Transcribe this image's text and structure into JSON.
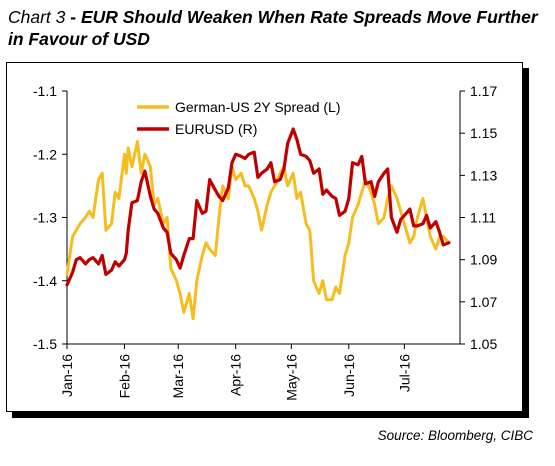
{
  "title": {
    "lead": "Chart 3",
    "separator": " - ",
    "text": "EUR Should Weaken When Rate Spreads Move Further in Favour of USD"
  },
  "source": "Source: Bloomberg, CIBC",
  "colors": {
    "spread": "#F5BD1F",
    "eurusd": "#C00000",
    "axis": "#000000"
  },
  "chart_data": {
    "type": "line",
    "title": "EUR Should Weaken When Rate Spreads Move Further in Favour of USD",
    "x_ticks": [
      "Jan-16",
      "Feb-16",
      "Mar-16",
      "Apr-16",
      "May-16",
      "Jun-16",
      "Jul-16"
    ],
    "x_range": [
      "2016-01-01",
      "2016-07-31"
    ],
    "y_left": {
      "range": [
        -1.5,
        -1.1
      ],
      "ticks": [
        "-1.1",
        "-1.2",
        "-1.3",
        "-1.4",
        "-1.5"
      ],
      "tick_values": [
        -1.1,
        -1.2,
        -1.3,
        -1.4,
        -1.5
      ]
    },
    "y_right": {
      "range": [
        1.05,
        1.17
      ],
      "ticks": [
        "1.17",
        "1.15",
        "1.13",
        "1.11",
        "1.09",
        "1.07",
        "1.05"
      ],
      "tick_values": [
        1.17,
        1.15,
        1.13,
        1.11,
        1.09,
        1.07,
        1.05
      ]
    },
    "legend_position": "top-left",
    "grid": false,
    "series": [
      {
        "name": "German-US 2Y Spread (L)",
        "axis": "left",
        "color": "#F5BD1F",
        "points": [
          [
            "2016-01-01",
            -1.39
          ],
          [
            "2016-01-04",
            -1.33
          ],
          [
            "2016-01-06",
            -1.32
          ],
          [
            "2016-01-08",
            -1.31
          ],
          [
            "2016-01-11",
            -1.3
          ],
          [
            "2016-01-13",
            -1.29
          ],
          [
            "2016-01-15",
            -1.3
          ],
          [
            "2016-01-18",
            -1.24
          ],
          [
            "2016-01-20",
            -1.23
          ],
          [
            "2016-01-22",
            -1.32
          ],
          [
            "2016-01-25",
            -1.31
          ],
          [
            "2016-01-27",
            -1.26
          ],
          [
            "2016-01-29",
            -1.27
          ],
          [
            "2016-02-01",
            -1.2
          ],
          [
            "2016-02-02",
            -1.23
          ],
          [
            "2016-02-03",
            -1.19
          ],
          [
            "2016-02-05",
            -1.22
          ],
          [
            "2016-02-08",
            -1.18
          ],
          [
            "2016-02-10",
            -1.23
          ],
          [
            "2016-02-12",
            -1.2
          ],
          [
            "2016-02-15",
            -1.22
          ],
          [
            "2016-02-17",
            -1.28
          ],
          [
            "2016-02-19",
            -1.27
          ],
          [
            "2016-02-22",
            -1.31
          ],
          [
            "2016-02-24",
            -1.3
          ],
          [
            "2016-02-26",
            -1.38
          ],
          [
            "2016-02-29",
            -1.4
          ],
          [
            "2016-03-02",
            -1.42
          ],
          [
            "2016-03-04",
            -1.45
          ],
          [
            "2016-03-07",
            -1.42
          ],
          [
            "2016-03-09",
            -1.46
          ],
          [
            "2016-03-11",
            -1.4
          ],
          [
            "2016-03-14",
            -1.36
          ],
          [
            "2016-03-16",
            -1.34
          ],
          [
            "2016-03-18",
            -1.35
          ],
          [
            "2016-03-21",
            -1.36
          ],
          [
            "2016-03-23",
            -1.3
          ],
          [
            "2016-03-25",
            -1.25
          ],
          [
            "2016-03-28",
            -1.27
          ],
          [
            "2016-03-30",
            -1.22
          ],
          [
            "2016-04-01",
            -1.24
          ],
          [
            "2016-04-04",
            -1.23
          ],
          [
            "2016-04-06",
            -1.25
          ],
          [
            "2016-04-08",
            -1.25
          ],
          [
            "2016-04-11",
            -1.27
          ],
          [
            "2016-04-13",
            -1.29
          ],
          [
            "2016-04-15",
            -1.32
          ],
          [
            "2016-04-18",
            -1.28
          ],
          [
            "2016-04-20",
            -1.26
          ],
          [
            "2016-04-22",
            -1.25
          ],
          [
            "2016-04-25",
            -1.23
          ],
          [
            "2016-04-27",
            -1.22
          ],
          [
            "2016-04-29",
            -1.25
          ],
          [
            "2016-05-02",
            -1.23
          ],
          [
            "2016-05-04",
            -1.27
          ],
          [
            "2016-05-06",
            -1.26
          ],
          [
            "2016-05-09",
            -1.31
          ],
          [
            "2016-05-11",
            -1.32
          ],
          [
            "2016-05-13",
            -1.4
          ],
          [
            "2016-05-16",
            -1.42
          ],
          [
            "2016-05-18",
            -1.4
          ],
          [
            "2016-05-20",
            -1.43
          ],
          [
            "2016-05-23",
            -1.43
          ],
          [
            "2016-05-25",
            -1.41
          ],
          [
            "2016-05-27",
            -1.42
          ],
          [
            "2016-05-30",
            -1.36
          ],
          [
            "2016-06-01",
            -1.34
          ],
          [
            "2016-06-03",
            -1.3
          ],
          [
            "2016-06-06",
            -1.28
          ],
          [
            "2016-06-08",
            -1.26
          ],
          [
            "2016-06-10",
            -1.24
          ],
          [
            "2016-06-13",
            -1.26
          ],
          [
            "2016-06-15",
            -1.28
          ],
          [
            "2016-06-17",
            -1.31
          ],
          [
            "2016-06-20",
            -1.3
          ],
          [
            "2016-06-22",
            -1.27
          ],
          [
            "2016-06-24",
            -1.25
          ],
          [
            "2016-06-27",
            -1.27
          ],
          [
            "2016-06-29",
            -1.29
          ],
          [
            "2016-07-01",
            -1.31
          ],
          [
            "2016-07-04",
            -1.34
          ],
          [
            "2016-07-06",
            -1.33
          ],
          [
            "2016-07-08",
            -1.3
          ],
          [
            "2016-07-11",
            -1.27
          ],
          [
            "2016-07-13",
            -1.3
          ],
          [
            "2016-07-15",
            -1.33
          ],
          [
            "2016-07-18",
            -1.35
          ],
          [
            "2016-07-20",
            -1.33
          ],
          [
            "2016-07-22",
            -1.33
          ],
          [
            "2016-07-25",
            -1.34
          ]
        ]
      },
      {
        "name": "EURUSD (R)",
        "axis": "right",
        "color": "#C00000",
        "points": [
          [
            "2016-01-01",
            1.078
          ],
          [
            "2016-01-04",
            1.084
          ],
          [
            "2016-01-06",
            1.09
          ],
          [
            "2016-01-08",
            1.091
          ],
          [
            "2016-01-11",
            1.088
          ],
          [
            "2016-01-13",
            1.09
          ],
          [
            "2016-01-15",
            1.091
          ],
          [
            "2016-01-18",
            1.088
          ],
          [
            "2016-01-20",
            1.092
          ],
          [
            "2016-01-22",
            1.083
          ],
          [
            "2016-01-25",
            1.085
          ],
          [
            "2016-01-27",
            1.089
          ],
          [
            "2016-01-29",
            1.087
          ],
          [
            "2016-02-01",
            1.09
          ],
          [
            "2016-02-02",
            1.093
          ],
          [
            "2016-02-03",
            1.104
          ],
          [
            "2016-02-05",
            1.117
          ],
          [
            "2016-02-08",
            1.118
          ],
          [
            "2016-02-10",
            1.127
          ],
          [
            "2016-02-12",
            1.132
          ],
          [
            "2016-02-15",
            1.12
          ],
          [
            "2016-02-17",
            1.114
          ],
          [
            "2016-02-19",
            1.112
          ],
          [
            "2016-02-22",
            1.105
          ],
          [
            "2016-02-24",
            1.103
          ],
          [
            "2016-02-26",
            1.093
          ],
          [
            "2016-02-29",
            1.09
          ],
          [
            "2016-03-02",
            1.086
          ],
          [
            "2016-03-04",
            1.092
          ],
          [
            "2016-03-07",
            1.1
          ],
          [
            "2016-03-09",
            1.1
          ],
          [
            "2016-03-11",
            1.118
          ],
          [
            "2016-03-14",
            1.112
          ],
          [
            "2016-03-16",
            1.113
          ],
          [
            "2016-03-18",
            1.128
          ],
          [
            "2016-03-21",
            1.123
          ],
          [
            "2016-03-23",
            1.12
          ],
          [
            "2016-03-25",
            1.118
          ],
          [
            "2016-03-28",
            1.124
          ],
          [
            "2016-03-30",
            1.136
          ],
          [
            "2016-04-01",
            1.14
          ],
          [
            "2016-04-04",
            1.139
          ],
          [
            "2016-04-06",
            1.138
          ],
          [
            "2016-04-08",
            1.14
          ],
          [
            "2016-04-11",
            1.141
          ],
          [
            "2016-04-13",
            1.129
          ],
          [
            "2016-04-15",
            1.131
          ],
          [
            "2016-04-18",
            1.133
          ],
          [
            "2016-04-20",
            1.136
          ],
          [
            "2016-04-22",
            1.127
          ],
          [
            "2016-04-25",
            1.128
          ],
          [
            "2016-04-27",
            1.133
          ],
          [
            "2016-04-29",
            1.145
          ],
          [
            "2016-05-02",
            1.152
          ],
          [
            "2016-05-04",
            1.147
          ],
          [
            "2016-05-06",
            1.14
          ],
          [
            "2016-05-09",
            1.139
          ],
          [
            "2016-05-11",
            1.137
          ],
          [
            "2016-05-13",
            1.131
          ],
          [
            "2016-05-16",
            1.133
          ],
          [
            "2016-05-18",
            1.121
          ],
          [
            "2016-05-20",
            1.123
          ],
          [
            "2016-05-23",
            1.12
          ],
          [
            "2016-05-25",
            1.119
          ],
          [
            "2016-05-27",
            1.111
          ],
          [
            "2016-05-30",
            1.113
          ],
          [
            "2016-06-01",
            1.119
          ],
          [
            "2016-06-03",
            1.136
          ],
          [
            "2016-06-06",
            1.135
          ],
          [
            "2016-06-08",
            1.139
          ],
          [
            "2016-06-10",
            1.126
          ],
          [
            "2016-06-13",
            1.127
          ],
          [
            "2016-06-15",
            1.12
          ],
          [
            "2016-06-17",
            1.127
          ],
          [
            "2016-06-20",
            1.131
          ],
          [
            "2016-06-22",
            1.133
          ],
          [
            "2016-06-24",
            1.11
          ],
          [
            "2016-06-27",
            1.103
          ],
          [
            "2016-06-29",
            1.109
          ],
          [
            "2016-07-01",
            1.111
          ],
          [
            "2016-07-04",
            1.114
          ],
          [
            "2016-07-06",
            1.106
          ],
          [
            "2016-07-08",
            1.106
          ],
          [
            "2016-07-11",
            1.107
          ],
          [
            "2016-07-13",
            1.111
          ],
          [
            "2016-07-15",
            1.105
          ],
          [
            "2016-07-18",
            1.108
          ],
          [
            "2016-07-20",
            1.103
          ],
          [
            "2016-07-22",
            1.097
          ],
          [
            "2016-07-25",
            1.098
          ]
        ]
      }
    ]
  }
}
